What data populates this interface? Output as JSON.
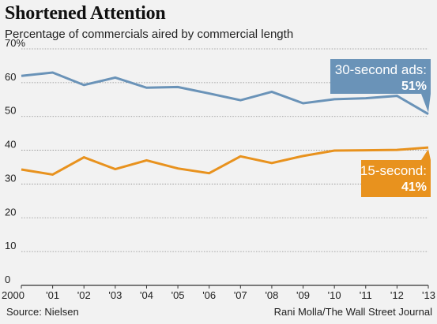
{
  "header": {
    "title": "Shortened Attention",
    "subtitle": "Percentage of commercials aired by commercial length"
  },
  "footer": {
    "source": "Source: Nielsen",
    "credit": "Rani Molla/The Wall Street Journal"
  },
  "colors": {
    "series_30": "#6a93b8",
    "series_15": "#e8921e",
    "grid": "#8c8c8c",
    "background": "#f2f2f2"
  },
  "chart_data": {
    "type": "line",
    "title": "Shortened Attention",
    "subtitle": "Percentage of commercials aired by commercial length",
    "x": [
      "2000",
      "'01",
      "'02",
      "'03",
      "'04",
      "'05",
      "'06",
      "'07",
      "'08",
      "'09",
      "'10",
      "'11",
      "'12",
      "'13"
    ],
    "y_ticks": [
      "70%",
      "60",
      "50",
      "40",
      "30",
      "20",
      "10",
      "0"
    ],
    "ylim": [
      0,
      70
    ],
    "grid": true,
    "series": [
      {
        "key": "s30",
        "values": [
          62,
          63,
          59.3,
          61.5,
          58.5,
          58.7,
          56.8,
          54.8,
          57.3,
          53.9,
          55.1,
          55.4,
          56.1,
          50.7
        ]
      },
      {
        "key": "s15",
        "values": [
          34.3,
          32.8,
          37.9,
          34.4,
          37,
          34.6,
          33.2,
          38.2,
          36.2,
          38.3,
          39.9,
          40,
          40.1,
          40.8
        ]
      }
    ],
    "annotations": [
      {
        "series": "s30",
        "label": "30-second ads:",
        "value_label": "51%",
        "placement": "above-right"
      },
      {
        "series": "s15",
        "label": "15-second:",
        "value_label": "41%",
        "placement": "below-right"
      }
    ]
  }
}
